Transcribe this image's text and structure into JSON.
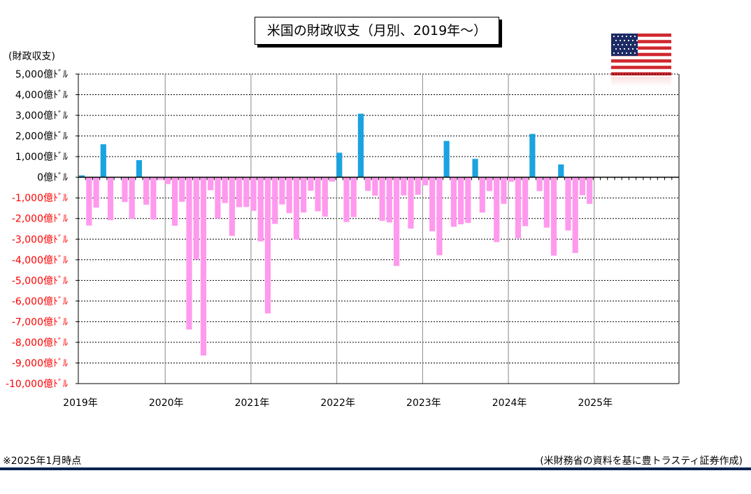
{
  "title": "米国の財政収支（月別、2019年〜）",
  "unit_label": "(財政収支)",
  "note": "※2025年1月時点",
  "source": "(米財務省の資料を基に豊トラスティ証券作成)",
  "colors": {
    "positive": "#1aa3e0",
    "negative": "#ff99ee",
    "negative_tick_text": "#ff0000",
    "positive_tick_text": "#000000",
    "footer": "#0b2454"
  },
  "chart_data": {
    "type": "bar",
    "ylabel": "(財政収支)",
    "ylim": [
      -10000,
      5000
    ],
    "grid": true,
    "yticks": [
      {
        "value": 5000,
        "label": "5,000億ﾄﾞﾙ"
      },
      {
        "value": 4000,
        "label": "4,000億ﾄﾞﾙ"
      },
      {
        "value": 3000,
        "label": "3,000億ﾄﾞﾙ"
      },
      {
        "value": 2000,
        "label": "2,000億ﾄﾞﾙ"
      },
      {
        "value": 1000,
        "label": "1,000億ﾄﾞﾙ"
      },
      {
        "value": 0,
        "label": "0億ﾄﾞﾙ"
      },
      {
        "value": -1000,
        "label": "-1,000億ﾄﾞﾙ"
      },
      {
        "value": -2000,
        "label": "-2,000億ﾄﾞﾙ"
      },
      {
        "value": -3000,
        "label": "-3,000億ﾄﾞﾙ"
      },
      {
        "value": -4000,
        "label": "-4,000億ﾄﾞﾙ"
      },
      {
        "value": -5000,
        "label": "-5,000億ﾄﾞﾙ"
      },
      {
        "value": -6000,
        "label": "-6,000億ﾄﾞﾙ"
      },
      {
        "value": -7000,
        "label": "-7,000億ﾄﾞﾙ"
      },
      {
        "value": -8000,
        "label": "-8,000億ﾄﾞﾙ"
      },
      {
        "value": -9000,
        "label": "-9,000億ﾄﾞﾙ"
      },
      {
        "value": -10000,
        "label": "-10,000億ﾄﾞﾙ"
      }
    ],
    "year_labels": [
      "2019年",
      "2020年",
      "2021年",
      "2022年",
      "2023年",
      "2024年",
      "2025年"
    ],
    "months_shown": 84,
    "values": [
      90,
      -2340,
      -1470,
      1600,
      -2080,
      0,
      -1200,
      -2010,
      830,
      -1330,
      -2050,
      -130,
      -330,
      -2350,
      -1190,
      -7380,
      -3990,
      -8640,
      -630,
      -2000,
      -1250,
      -2840,
      -1450,
      -1440,
      -1630,
      -3110,
      -6600,
      -2260,
      -1320,
      -1740,
      -3020,
      -1710,
      -650,
      -1650,
      -1910,
      -210,
      1190,
      -2170,
      -1930,
      3080,
      -660,
      -890,
      -2110,
      -2190,
      -4300,
      -880,
      -2490,
      -850,
      -390,
      -2620,
      -3780,
      1760,
      -2400,
      -2280,
      -2210,
      890,
      -1710,
      -670,
      -3140,
      -1290,
      -220,
      -2960,
      -2370,
      2100,
      -670,
      -2440,
      -3800,
      620,
      -2580,
      -3670,
      -870,
      -1290
    ]
  }
}
